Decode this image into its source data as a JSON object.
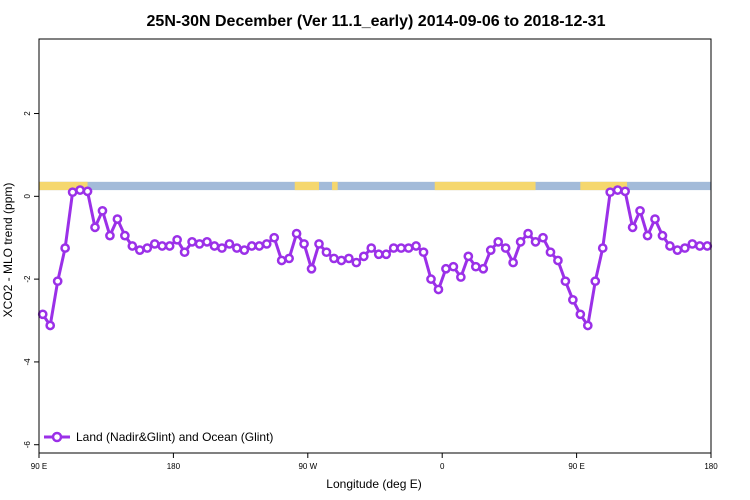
{
  "chart_data": {
    "type": "line",
    "title": "25N-30N December (Ver 11.1_early)   2014-09-06 to 2018-12-31",
    "xlabel": "Longitude (deg E)",
    "ylabel": "XCO2 - MLO trend (ppm)",
    "xlim": [
      90,
      450
    ],
    "ylim": [
      -6.2,
      3.8
    ],
    "x_ticks": [
      {
        "value": 90,
        "label": "90 E"
      },
      {
        "value": 162,
        "label": "180"
      },
      {
        "value": 234,
        "label": "90 W"
      },
      {
        "value": 306,
        "label": "0"
      },
      {
        "value": 378,
        "label": "90 E"
      },
      {
        "value": 450,
        "label": "180"
      }
    ],
    "y_ticks": [
      {
        "value": 2,
        "label": "2"
      },
      {
        "value": 0,
        "label": "0"
      },
      {
        "value": -2,
        "label": "-2"
      },
      {
        "value": -4,
        "label": "-4"
      },
      {
        "value": -6,
        "label": "-6"
      }
    ],
    "grid": false,
    "legend_position": "bottom-left",
    "colors": {
      "series": "#9b30e8",
      "land": "#f5d76e",
      "ocean": "#a3bbd9"
    },
    "land_mask": {
      "y_top": 0.35,
      "y_bottom": 0.15,
      "land_segments": [
        [
          90,
          116
        ],
        [
          227,
          240
        ],
        [
          247,
          250
        ],
        [
          302,
          356
        ],
        [
          380,
          405
        ]
      ]
    },
    "series": [
      {
        "name": "Land (Nadir&Glint) and Ocean (Glint)",
        "x": [
          92,
          96,
          100,
          104,
          108,
          112,
          116,
          120,
          124,
          128,
          132,
          136,
          140,
          144,
          148,
          152,
          156,
          160,
          164,
          168,
          172,
          176,
          180,
          184,
          188,
          192,
          196,
          200,
          204,
          208,
          212,
          216,
          220,
          224,
          228,
          232,
          236,
          240,
          244,
          248,
          252,
          256,
          260,
          264,
          268,
          272,
          276,
          280,
          284,
          288,
          292,
          296,
          300,
          304,
          308,
          312,
          316,
          320,
          324,
          328,
          332,
          336,
          340,
          344,
          348,
          352,
          356,
          360,
          364,
          368,
          372,
          376,
          380,
          384,
          388,
          392,
          396,
          400,
          404,
          408,
          412,
          416,
          420,
          424,
          428,
          432,
          436,
          440,
          444,
          448
        ],
        "values": [
          -2.85,
          -3.12,
          -2.05,
          -1.25,
          0.1,
          0.15,
          0.12,
          -0.75,
          -0.35,
          -0.95,
          -0.55,
          -0.95,
          -1.2,
          -1.3,
          -1.25,
          -1.15,
          -1.2,
          -1.2,
          -1.05,
          -1.35,
          -1.1,
          -1.15,
          -1.1,
          -1.2,
          -1.25,
          -1.15,
          -1.25,
          -1.3,
          -1.2,
          -1.2,
          -1.15,
          -1.0,
          -1.55,
          -1.5,
          -0.9,
          -1.15,
          -1.75,
          -1.15,
          -1.35,
          -1.5,
          -1.55,
          -1.5,
          -1.6,
          -1.45,
          -1.25,
          -1.4,
          -1.4,
          -1.25,
          -1.25,
          -1.25,
          -1.2,
          -1.35,
          -2.0,
          -2.25,
          -1.75,
          -1.7,
          -1.95,
          -1.45,
          -1.7,
          -1.75,
          -1.3,
          -1.1,
          -1.25,
          -1.6,
          -1.1,
          -0.9,
          -1.1,
          -1.0,
          -1.35,
          -1.55,
          -2.05,
          -2.5,
          -2.85,
          -3.12,
          -2.05,
          -1.25,
          0.1,
          0.15,
          0.12,
          -0.75,
          -0.35,
          -0.95,
          -0.55,
          -0.95,
          -1.2,
          -1.3,
          -1.25,
          -1.15,
          -1.2,
          -1.2
        ]
      }
    ]
  }
}
